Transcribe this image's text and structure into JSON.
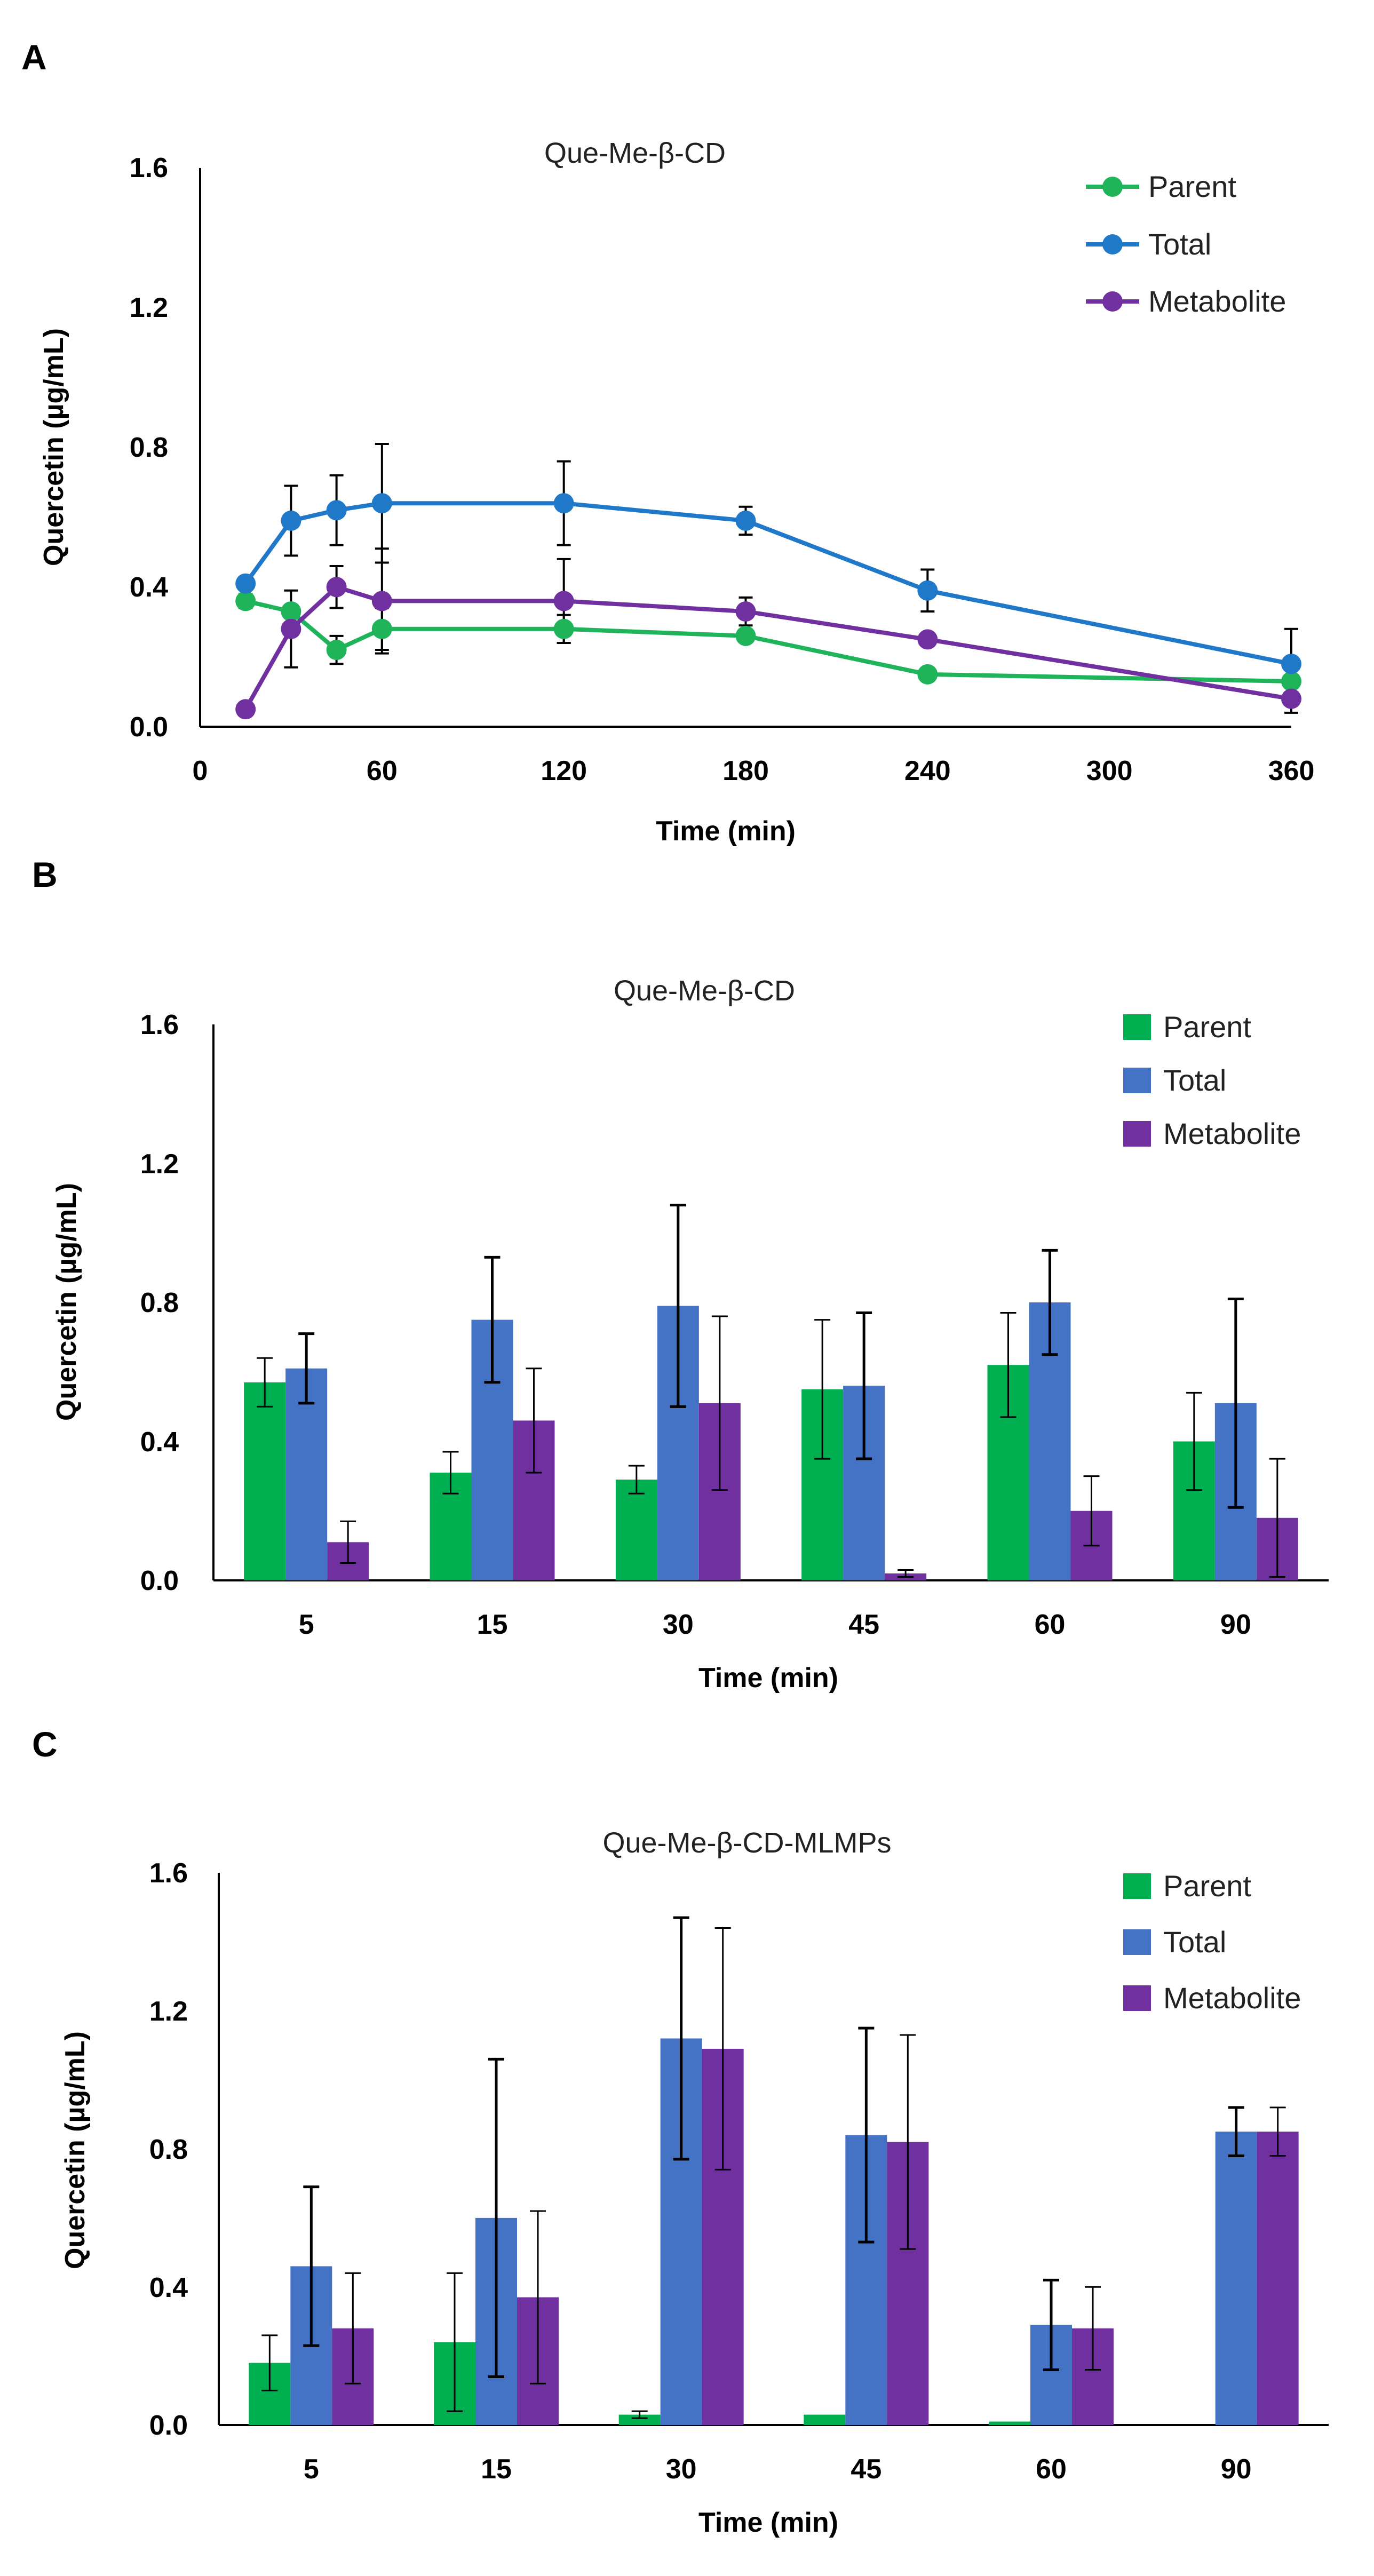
{
  "colors": {
    "parent": "#00B050",
    "parent_line": "#1FB35A",
    "total_line": "#1F78C8",
    "total_bar": "#4472C4",
    "metabolite": "#7030A0",
    "axis": "#000000",
    "error": "#000000"
  },
  "chart_data": [
    {
      "panel": "A",
      "type": "line",
      "title": "Que-Me-β-CD",
      "xlabel": "Time (min)",
      "ylabel": "Quercetin (µg/mL)",
      "xlim": [
        0,
        360
      ],
      "ylim": [
        0,
        1.6
      ],
      "xticks": [
        0,
        60,
        120,
        180,
        240,
        300,
        360
      ],
      "yticks": [
        0.0,
        0.4,
        0.8,
        1.2,
        1.6
      ],
      "ytick_labels": [
        "0.0",
        "0.4",
        "0.8",
        "1.2",
        "1.6"
      ],
      "legend_position": "top-right",
      "x": [
        15,
        30,
        45,
        60,
        120,
        180,
        240,
        360
      ],
      "series": [
        {
          "key": "parent",
          "name": "Parent",
          "values": [
            0.36,
            0.33,
            0.22,
            0.28,
            0.28,
            0.26,
            0.15,
            0.13
          ],
          "errors": [
            0.02,
            0.0,
            0.04,
            0.06,
            0.04,
            0.0,
            0.0,
            0.0
          ]
        },
        {
          "key": "total",
          "name": "Total",
          "values": [
            0.41,
            0.59,
            0.62,
            0.64,
            0.64,
            0.59,
            0.39,
            0.18
          ],
          "errors": [
            0.0,
            0.1,
            0.1,
            0.17,
            0.12,
            0.04,
            0.06,
            0.1
          ]
        },
        {
          "key": "metabolite",
          "name": "Metabolite",
          "values": [
            0.05,
            0.28,
            0.4,
            0.36,
            0.36,
            0.33,
            0.25,
            0.08
          ],
          "errors": [
            0.0,
            0.11,
            0.06,
            0.15,
            0.12,
            0.04,
            0.0,
            0.04
          ]
        }
      ]
    },
    {
      "panel": "B",
      "type": "bar",
      "title": "Que-Me-β-CD",
      "xlabel": "Time (min)",
      "ylabel": "Quercetin (µg/mL)",
      "ylim": [
        0,
        1.6
      ],
      "yticks": [
        0.0,
        0.4,
        0.8,
        1.2,
        1.6
      ],
      "ytick_labels": [
        "0.0",
        "0.4",
        "0.8",
        "1.2",
        "1.6"
      ],
      "legend_position": "top-right",
      "categories": [
        "5",
        "15",
        "30",
        "45",
        "60",
        "90"
      ],
      "series": [
        {
          "key": "parent",
          "name": "Parent",
          "values": [
            0.57,
            0.31,
            0.29,
            0.55,
            0.62,
            0.4
          ],
          "errors": [
            0.07,
            0.06,
            0.04,
            0.2,
            0.15,
            0.14
          ]
        },
        {
          "key": "total",
          "name": "Total",
          "values": [
            0.61,
            0.75,
            0.79,
            0.56,
            0.8,
            0.51
          ],
          "errors": [
            0.1,
            0.18,
            0.29,
            0.21,
            0.15,
            0.3
          ]
        },
        {
          "key": "metabolite",
          "name": "Metabolite",
          "values": [
            0.11,
            0.46,
            0.51,
            0.02,
            0.2,
            0.18
          ],
          "errors": [
            0.06,
            0.15,
            0.25,
            0.01,
            0.1,
            0.17
          ]
        }
      ]
    },
    {
      "panel": "C",
      "type": "bar",
      "title": "Que-Me-β-CD-MLMPs",
      "xlabel": "Time (min)",
      "ylabel": "Quercetin (µg/mL)",
      "ylim": [
        0,
        1.6
      ],
      "yticks": [
        0.0,
        0.4,
        0.8,
        1.2,
        1.6
      ],
      "ytick_labels": [
        "0.0",
        "0.4",
        "0.8",
        "1.2",
        "1.6"
      ],
      "legend_position": "top-right",
      "categories": [
        "5",
        "15",
        "30",
        "45",
        "60",
        "90"
      ],
      "series": [
        {
          "key": "parent",
          "name": "Parent",
          "values": [
            0.18,
            0.24,
            0.03,
            0.03,
            0.01,
            0.0
          ],
          "errors": [
            0.08,
            0.2,
            0.01,
            0.0,
            0.0,
            0.0
          ]
        },
        {
          "key": "total",
          "name": "Total",
          "values": [
            0.46,
            0.6,
            1.12,
            0.84,
            0.29,
            0.85
          ],
          "errors": [
            0.23,
            0.46,
            0.35,
            0.31,
            0.13,
            0.07
          ]
        },
        {
          "key": "metabolite",
          "name": "Metabolite",
          "values": [
            0.28,
            0.37,
            1.09,
            0.82,
            0.28,
            0.85
          ],
          "errors": [
            0.16,
            0.25,
            0.35,
            0.31,
            0.12,
            0.07
          ]
        }
      ]
    }
  ]
}
